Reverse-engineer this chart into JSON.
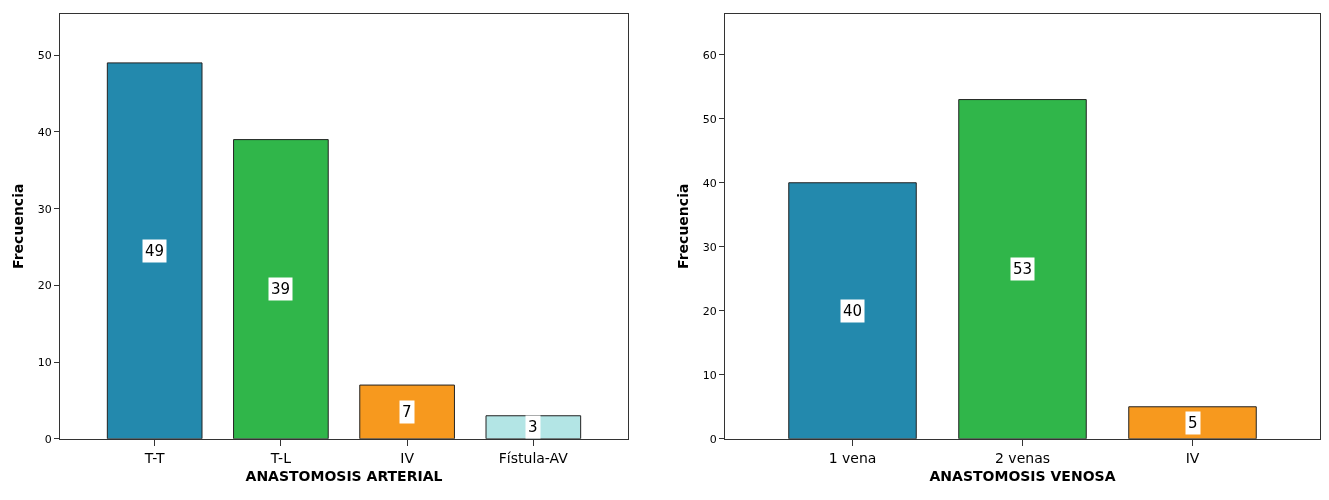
{
  "chart_data": [
    {
      "type": "bar",
      "xlabel": "ANASTOMOSIS ARTERIAL",
      "ylabel": "Frecuencia",
      "categories": [
        "T-T",
        "T-L",
        "IV",
        "Fístula-AV"
      ],
      "values": [
        49,
        39,
        7,
        3
      ],
      "colors": [
        "#2389ad",
        "#30b64a",
        "#f7991e",
        "#b3e5e5"
      ],
      "ylim": [
        0,
        55.4
      ],
      "yticks": [
        0,
        10,
        20,
        30,
        40,
        50
      ],
      "data_labels": true
    },
    {
      "type": "bar",
      "xlabel": "ANASTOMOSIS VENOSA",
      "ylabel": "Frecuencia",
      "categories": [
        "1 vena",
        "2 venas",
        "IV"
      ],
      "values": [
        40,
        53,
        5
      ],
      "colors": [
        "#2389ad",
        "#30b64a",
        "#f7991e"
      ],
      "ylim": [
        0,
        66.4
      ],
      "yticks": [
        0,
        10,
        20,
        30,
        40,
        50,
        60
      ],
      "data_labels": true
    }
  ]
}
